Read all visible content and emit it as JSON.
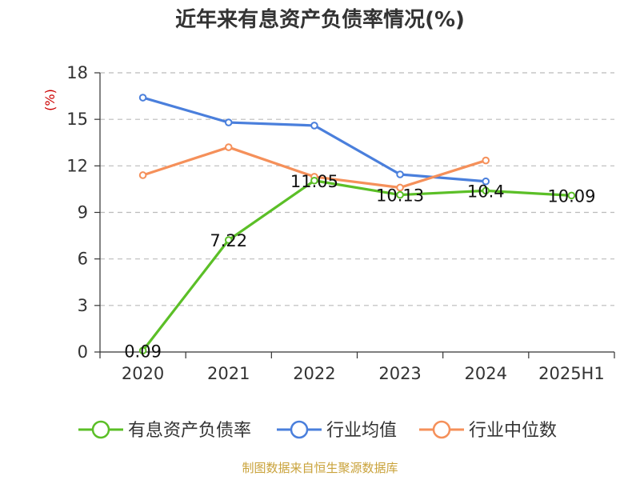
{
  "chart_data": {
    "type": "line",
    "title": "近年来有息资产负债率情况(%)",
    "ylabel": "(%)",
    "categories": [
      "2020",
      "2021",
      "2022",
      "2023",
      "2024",
      "2025H1"
    ],
    "ylim": [
      0,
      18
    ],
    "yticks": [
      0,
      3,
      6,
      9,
      12,
      15,
      18
    ],
    "grid": true,
    "legend_position": "bottom",
    "series": [
      {
        "name": "有息资产负债率",
        "color": "#5bbf27",
        "values": [
          0.09,
          7.22,
          11.05,
          10.13,
          10.4,
          10.09
        ],
        "labels": [
          "0.09",
          "7.22",
          "11.05",
          "10.13",
          "10.4",
          "10.09"
        ]
      },
      {
        "name": "行业均值",
        "color": "#4a7fdc",
        "values": [
          16.4,
          14.8,
          14.6,
          11.45,
          11.0,
          null
        ]
      },
      {
        "name": "行业中位数",
        "color": "#f5905a",
        "values": [
          11.4,
          13.2,
          11.3,
          10.6,
          12.35,
          null
        ]
      }
    ],
    "source": "制图数据来自恒生聚源数据库",
    "ylabel_color": "#cc0000",
    "source_color": "#c9a23a"
  }
}
